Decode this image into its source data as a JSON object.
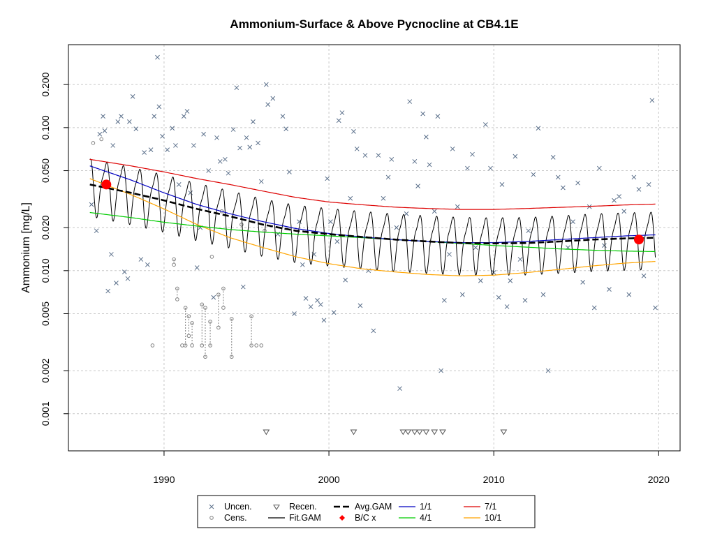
{
  "chart_data": {
    "type": "scatter",
    "title": "Ammonium-Surface & Above Pycnocline at CB4.1E",
    "xlabel": "",
    "ylabel": "Ammonium [mg/L]",
    "xlim": [
      1984.2,
      2021.3
    ],
    "ylim": [
      0.00055,
      0.38
    ],
    "y_scale": "log",
    "grid": true,
    "legend_position": "bottom",
    "x_ticks": [
      1990,
      2000,
      2010,
      2020
    ],
    "y_ticks": [
      0.001,
      0.002,
      0.005,
      0.01,
      0.02,
      0.05,
      0.1,
      0.2
    ],
    "y_tick_labels": [
      "0.001",
      "0.002",
      "0.005",
      "0.010",
      "0.020",
      "0.050",
      "0.100",
      "0.200"
    ],
    "legend": [
      {
        "key": "uncen",
        "label": "Uncen."
      },
      {
        "key": "cens",
        "label": "Cens."
      },
      {
        "key": "recen",
        "label": "Recen."
      },
      {
        "key": "fitgam",
        "label": "Fit.GAM"
      },
      {
        "key": "avggam",
        "label": "Avg.GAM"
      },
      {
        "key": "bc",
        "label": "B/C x"
      },
      {
        "key": "m1",
        "label": "1/1"
      },
      {
        "key": "m4",
        "label": "4/1"
      },
      {
        "key": "m7",
        "label": "7/1"
      },
      {
        "key": "m10",
        "label": "10/1"
      }
    ],
    "colors": {
      "uncen": "#5a6f8a",
      "cens": "#808080",
      "recen": "#555555",
      "fitgam": "#000000",
      "avggam": "#000000",
      "bc": "#ff0000",
      "m1": "#0000c0",
      "m4": "#00cc00",
      "m7": "#dd0000",
      "m10": "#ffa500"
    },
    "series": [
      {
        "key": "avggam",
        "x": [
          1985.5,
          1988,
          1990,
          1992,
          1994,
          1996,
          1998,
          2000,
          2002,
          2004,
          2006,
          2008,
          2010,
          2012,
          2014,
          2016,
          2018,
          2019.8
        ],
        "y": [
          0.04,
          0.035,
          0.031,
          0.027,
          0.024,
          0.021,
          0.019,
          0.018,
          0.0172,
          0.0165,
          0.016,
          0.0156,
          0.0155,
          0.0156,
          0.016,
          0.0165,
          0.0168,
          0.017
        ]
      },
      {
        "key": "m1",
        "x": [
          1985.5,
          1988,
          1990,
          1992,
          1994,
          1996,
          1998,
          2000,
          2002,
          2004,
          2006,
          2008,
          2010,
          2012,
          2014,
          2016,
          2018,
          2019.8
        ],
        "y": [
          0.054,
          0.043,
          0.035,
          0.029,
          0.025,
          0.022,
          0.0197,
          0.0182,
          0.0172,
          0.0165,
          0.016,
          0.0157,
          0.0157,
          0.016,
          0.0165,
          0.017,
          0.0175,
          0.0178
        ]
      },
      {
        "key": "m4",
        "x": [
          1985.5,
          1988,
          1990,
          1992,
          1994,
          1996,
          1998,
          2000,
          2002,
          2004,
          2006,
          2008,
          2010,
          2012,
          2014,
          2016,
          2018,
          2019.8
        ],
        "y": [
          0.0255,
          0.0235,
          0.0218,
          0.0205,
          0.0194,
          0.0186,
          0.018,
          0.0175,
          0.017,
          0.0165,
          0.016,
          0.0155,
          0.015,
          0.0146,
          0.0142,
          0.0139,
          0.0137,
          0.0136
        ]
      },
      {
        "key": "m7",
        "x": [
          1985.5,
          1988,
          1990,
          1992,
          1994,
          1996,
          1998,
          2000,
          2002,
          2004,
          2006,
          2008,
          2010,
          2012,
          2014,
          2016,
          2018,
          2019.8
        ],
        "y": [
          0.06,
          0.054,
          0.049,
          0.044,
          0.04,
          0.036,
          0.0325,
          0.0302,
          0.0289,
          0.0278,
          0.0272,
          0.0268,
          0.0268,
          0.0272,
          0.0277,
          0.0282,
          0.0288,
          0.0292
        ]
      },
      {
        "key": "m10",
        "x": [
          1985.5,
          1988,
          1990,
          1992,
          1994,
          1996,
          1998,
          2000,
          2002,
          2004,
          2006,
          2008,
          2010,
          2012,
          2014,
          2016,
          2018,
          2019.8
        ],
        "y": [
          0.044,
          0.034,
          0.027,
          0.021,
          0.017,
          0.0145,
          0.0125,
          0.0112,
          0.0103,
          0.0098,
          0.0094,
          0.0092,
          0.0093,
          0.0097,
          0.0102,
          0.0108,
          0.0113,
          0.0116
        ]
      }
    ],
    "fit_gam": {
      "x_start": 1985.5,
      "x_end": 2019.8
    },
    "bc_points": [
      {
        "x": 1986.5,
        "y": 0.04
      },
      {
        "x": 2018.8,
        "y": 0.0165
      }
    ],
    "recen_points": [
      {
        "x": 1996.2,
        "y": 0.00075
      },
      {
        "x": 2001.5,
        "y": 0.00075
      },
      {
        "x": 2004.5,
        "y": 0.00075
      },
      {
        "x": 2004.8,
        "y": 0.00075
      },
      {
        "x": 2005.2,
        "y": 0.00075
      },
      {
        "x": 2005.5,
        "y": 0.00075
      },
      {
        "x": 2005.9,
        "y": 0.00075
      },
      {
        "x": 2006.4,
        "y": 0.00075
      },
      {
        "x": 2006.9,
        "y": 0.00075
      },
      {
        "x": 2010.6,
        "y": 0.00075
      }
    ],
    "cens_points": [
      {
        "x": 1985.7,
        "y": 0.078,
        "lo": 0.078
      },
      {
        "x": 1986.2,
        "y": 0.083,
        "lo": 0.083
      },
      {
        "x": 1990.6,
        "y": 0.012,
        "lo": 0.011
      },
      {
        "x": 1990.8,
        "y": 0.0075,
        "lo": 0.0063
      },
      {
        "x": 1991.3,
        "y": 0.0055,
        "lo": 0.003
      },
      {
        "x": 1991.5,
        "y": 0.0048,
        "lo": 0.0035
      },
      {
        "x": 1991.7,
        "y": 0.0043,
        "lo": 0.003
      },
      {
        "x": 1992.3,
        "y": 0.0058,
        "lo": 0.003
      },
      {
        "x": 1992.5,
        "y": 0.0055,
        "lo": 0.0025
      },
      {
        "x": 1992.8,
        "y": 0.0044,
        "lo": 0.003
      },
      {
        "x": 1993.3,
        "y": 0.0068,
        "lo": 0.004
      },
      {
        "x": 1993.6,
        "y": 0.0075,
        "lo": 0.0055
      },
      {
        "x": 1994.1,
        "y": 0.0046,
        "lo": 0.0025
      },
      {
        "x": 1995.3,
        "y": 0.0048,
        "lo": 0.003
      },
      {
        "x": 1995.6,
        "y": 0.003,
        "lo": 0.003
      },
      {
        "x": 1995.9,
        "y": 0.003,
        "lo": 0.003
      },
      {
        "x": 1991.1,
        "y": 0.003,
        "lo": 0.003
      },
      {
        "x": 1989.3,
        "y": 0.003,
        "lo": 0.003
      },
      {
        "x": 1992.9,
        "y": 0.0125,
        "lo": 0.0125
      },
      {
        "x": 1993.5,
        "y": 0.026,
        "lo": 0.026
      },
      {
        "x": 1994.7,
        "y": 0.021,
        "lo": 0.021
      },
      {
        "x": 1996.1,
        "y": 0.019,
        "lo": 0.019
      }
    ],
    "uncen_points": [
      {
        "x": 1985.6,
        "y": 0.029
      },
      {
        "x": 1985.9,
        "y": 0.019
      },
      {
        "x": 1986.1,
        "y": 0.09
      },
      {
        "x": 1986.3,
        "y": 0.12
      },
      {
        "x": 1986.4,
        "y": 0.095
      },
      {
        "x": 1986.6,
        "y": 0.0072
      },
      {
        "x": 1986.8,
        "y": 0.013
      },
      {
        "x": 1986.9,
        "y": 0.075
      },
      {
        "x": 1987.1,
        "y": 0.0082
      },
      {
        "x": 1987.2,
        "y": 0.11
      },
      {
        "x": 1987.4,
        "y": 0.12
      },
      {
        "x": 1987.6,
        "y": 0.0098
      },
      {
        "x": 1987.8,
        "y": 0.0088
      },
      {
        "x": 1987.9,
        "y": 0.11
      },
      {
        "x": 1988.1,
        "y": 0.165
      },
      {
        "x": 1988.3,
        "y": 0.098
      },
      {
        "x": 1988.6,
        "y": 0.012
      },
      {
        "x": 1988.8,
        "y": 0.067
      },
      {
        "x": 1989.0,
        "y": 0.011
      },
      {
        "x": 1989.2,
        "y": 0.07
      },
      {
        "x": 1989.4,
        "y": 0.12
      },
      {
        "x": 1989.6,
        "y": 0.31
      },
      {
        "x": 1989.7,
        "y": 0.14
      },
      {
        "x": 1989.9,
        "y": 0.087
      },
      {
        "x": 1990.2,
        "y": 0.07
      },
      {
        "x": 1990.5,
        "y": 0.099
      },
      {
        "x": 1990.7,
        "y": 0.075
      },
      {
        "x": 1990.9,
        "y": 0.04
      },
      {
        "x": 1991.2,
        "y": 0.12
      },
      {
        "x": 1991.4,
        "y": 0.13
      },
      {
        "x": 1991.6,
        "y": 0.035
      },
      {
        "x": 1991.8,
        "y": 0.075
      },
      {
        "x": 1992.0,
        "y": 0.0105
      },
      {
        "x": 1992.2,
        "y": 0.02
      },
      {
        "x": 1992.4,
        "y": 0.09
      },
      {
        "x": 1992.7,
        "y": 0.05
      },
      {
        "x": 1993.0,
        "y": 0.0065
      },
      {
        "x": 1993.2,
        "y": 0.085
      },
      {
        "x": 1993.4,
        "y": 0.058
      },
      {
        "x": 1993.7,
        "y": 0.06
      },
      {
        "x": 1993.9,
        "y": 0.048
      },
      {
        "x": 1994.2,
        "y": 0.097
      },
      {
        "x": 1994.4,
        "y": 0.19
      },
      {
        "x": 1994.6,
        "y": 0.072
      },
      {
        "x": 1994.8,
        "y": 0.0077
      },
      {
        "x": 1995.0,
        "y": 0.085
      },
      {
        "x": 1995.2,
        "y": 0.073
      },
      {
        "x": 1995.4,
        "y": 0.11
      },
      {
        "x": 1995.7,
        "y": 0.078
      },
      {
        "x": 1995.9,
        "y": 0.042
      },
      {
        "x": 1996.2,
        "y": 0.2
      },
      {
        "x": 1996.3,
        "y": 0.145
      },
      {
        "x": 1996.6,
        "y": 0.16
      },
      {
        "x": 1996.9,
        "y": 0.018
      },
      {
        "x": 1997.2,
        "y": 0.12
      },
      {
        "x": 1997.4,
        "y": 0.098
      },
      {
        "x": 1997.6,
        "y": 0.049
      },
      {
        "x": 1997.9,
        "y": 0.005
      },
      {
        "x": 1998.2,
        "y": 0.022
      },
      {
        "x": 1998.4,
        "y": 0.011
      },
      {
        "x": 1998.6,
        "y": 0.0064
      },
      {
        "x": 1998.9,
        "y": 0.0056
      },
      {
        "x": 1999.1,
        "y": 0.013
      },
      {
        "x": 1999.3,
        "y": 0.0062
      },
      {
        "x": 1999.5,
        "y": 0.0058
      },
      {
        "x": 1999.7,
        "y": 0.0045
      },
      {
        "x": 1999.9,
        "y": 0.044
      },
      {
        "x": 2000.1,
        "y": 0.022
      },
      {
        "x": 2000.3,
        "y": 0.0051
      },
      {
        "x": 2000.5,
        "y": 0.016
      },
      {
        "x": 2000.6,
        "y": 0.112
      },
      {
        "x": 2000.8,
        "y": 0.127
      },
      {
        "x": 2001.0,
        "y": 0.0086
      },
      {
        "x": 2001.3,
        "y": 0.032
      },
      {
        "x": 2001.5,
        "y": 0.094
      },
      {
        "x": 2001.7,
        "y": 0.071
      },
      {
        "x": 2001.9,
        "y": 0.0057
      },
      {
        "x": 2002.2,
        "y": 0.064
      },
      {
        "x": 2002.4,
        "y": 0.01
      },
      {
        "x": 2002.7,
        "y": 0.0038
      },
      {
        "x": 2003.0,
        "y": 0.064
      },
      {
        "x": 2003.3,
        "y": 0.032
      },
      {
        "x": 2003.6,
        "y": 0.045
      },
      {
        "x": 2003.8,
        "y": 0.06
      },
      {
        "x": 2004.1,
        "y": 0.02
      },
      {
        "x": 2004.3,
        "y": 0.0015
      },
      {
        "x": 2004.7,
        "y": 0.025
      },
      {
        "x": 2004.9,
        "y": 0.152
      },
      {
        "x": 2005.2,
        "y": 0.058
      },
      {
        "x": 2005.4,
        "y": 0.039
      },
      {
        "x": 2005.7,
        "y": 0.125
      },
      {
        "x": 2005.9,
        "y": 0.086
      },
      {
        "x": 2006.1,
        "y": 0.055
      },
      {
        "x": 2006.4,
        "y": 0.026
      },
      {
        "x": 2006.6,
        "y": 0.12
      },
      {
        "x": 2006.8,
        "y": 0.002
      },
      {
        "x": 2007.0,
        "y": 0.0062
      },
      {
        "x": 2007.3,
        "y": 0.013
      },
      {
        "x": 2007.5,
        "y": 0.071
      },
      {
        "x": 2007.8,
        "y": 0.028
      },
      {
        "x": 2008.1,
        "y": 0.0068
      },
      {
        "x": 2008.4,
        "y": 0.052
      },
      {
        "x": 2008.7,
        "y": 0.065
      },
      {
        "x": 2008.9,
        "y": 0.0145
      },
      {
        "x": 2009.2,
        "y": 0.0085
      },
      {
        "x": 2009.5,
        "y": 0.105
      },
      {
        "x": 2009.8,
        "y": 0.052
      },
      {
        "x": 2010.0,
        "y": 0.0097
      },
      {
        "x": 2010.3,
        "y": 0.0065
      },
      {
        "x": 2010.5,
        "y": 0.04
      },
      {
        "x": 2010.8,
        "y": 0.0056
      },
      {
        "x": 2011.0,
        "y": 0.0085
      },
      {
        "x": 2011.3,
        "y": 0.063
      },
      {
        "x": 2011.6,
        "y": 0.012
      },
      {
        "x": 2011.9,
        "y": 0.0062
      },
      {
        "x": 2012.1,
        "y": 0.019
      },
      {
        "x": 2012.4,
        "y": 0.047
      },
      {
        "x": 2012.7,
        "y": 0.099
      },
      {
        "x": 2013.0,
        "y": 0.0068
      },
      {
        "x": 2013.3,
        "y": 0.002
      },
      {
        "x": 2013.6,
        "y": 0.062
      },
      {
        "x": 2013.9,
        "y": 0.045
      },
      {
        "x": 2014.2,
        "y": 0.038
      },
      {
        "x": 2014.5,
        "y": 0.0145
      },
      {
        "x": 2014.8,
        "y": 0.022
      },
      {
        "x": 2015.1,
        "y": 0.041
      },
      {
        "x": 2015.4,
        "y": 0.0083
      },
      {
        "x": 2015.8,
        "y": 0.028
      },
      {
        "x": 2016.1,
        "y": 0.0055
      },
      {
        "x": 2016.4,
        "y": 0.052
      },
      {
        "x": 2016.7,
        "y": 0.015
      },
      {
        "x": 2017.0,
        "y": 0.0074
      },
      {
        "x": 2017.3,
        "y": 0.031
      },
      {
        "x": 2017.6,
        "y": 0.033
      },
      {
        "x": 2017.9,
        "y": 0.026
      },
      {
        "x": 2018.2,
        "y": 0.0068
      },
      {
        "x": 2018.5,
        "y": 0.045
      },
      {
        "x": 2018.8,
        "y": 0.037
      },
      {
        "x": 2019.1,
        "y": 0.0092
      },
      {
        "x": 2019.4,
        "y": 0.04
      },
      {
        "x": 2019.6,
        "y": 0.155
      },
      {
        "x": 2019.8,
        "y": 0.0055
      }
    ]
  }
}
